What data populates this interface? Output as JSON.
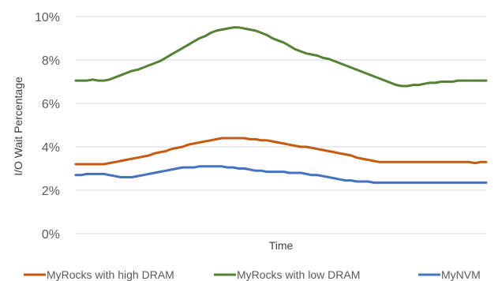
{
  "chart_data": {
    "type": "line",
    "title": "",
    "xlabel": "Time",
    "ylabel": "I/O Wait Percentage",
    "ylim": [
      0,
      10
    ],
    "y_ticks": [
      "0%",
      "2%",
      "4%",
      "6%",
      "8%",
      "10%"
    ],
    "grid": "horizontal",
    "legend_position": "bottom",
    "x_count": 74,
    "series": [
      {
        "name": "MyRocks  with high DRAM",
        "color": "#C55A11",
        "values": [
          3.2,
          3.2,
          3.2,
          3.2,
          3.2,
          3.2,
          3.25,
          3.3,
          3.35,
          3.4,
          3.45,
          3.5,
          3.55,
          3.6,
          3.7,
          3.75,
          3.8,
          3.9,
          3.95,
          4.0,
          4.1,
          4.15,
          4.2,
          4.25,
          4.3,
          4.35,
          4.4,
          4.4,
          4.4,
          4.4,
          4.4,
          4.35,
          4.35,
          4.3,
          4.3,
          4.25,
          4.2,
          4.15,
          4.1,
          4.05,
          4.0,
          4.0,
          3.95,
          3.9,
          3.85,
          3.8,
          3.75,
          3.7,
          3.65,
          3.6,
          3.5,
          3.45,
          3.4,
          3.35,
          3.3,
          3.3,
          3.3,
          3.3,
          3.3,
          3.3,
          3.3,
          3.3,
          3.3,
          3.3,
          3.3,
          3.3,
          3.3,
          3.3,
          3.3,
          3.3,
          3.3,
          3.25,
          3.3,
          3.3
        ]
      },
      {
        "name": "MyRocks  with low DRAM",
        "color": "#548235",
        "values": [
          7.05,
          7.05,
          7.05,
          7.1,
          7.05,
          7.05,
          7.1,
          7.2,
          7.3,
          7.4,
          7.5,
          7.55,
          7.65,
          7.75,
          7.85,
          7.95,
          8.1,
          8.25,
          8.4,
          8.55,
          8.7,
          8.85,
          9.0,
          9.1,
          9.25,
          9.35,
          9.4,
          9.45,
          9.5,
          9.5,
          9.45,
          9.4,
          9.35,
          9.25,
          9.15,
          9.0,
          8.9,
          8.8,
          8.65,
          8.5,
          8.4,
          8.3,
          8.25,
          8.2,
          8.1,
          8.05,
          7.95,
          7.85,
          7.75,
          7.65,
          7.55,
          7.45,
          7.35,
          7.25,
          7.15,
          7.05,
          6.95,
          6.85,
          6.8,
          6.8,
          6.85,
          6.85,
          6.9,
          6.95,
          6.95,
          7.0,
          7.0,
          7.0,
          7.05,
          7.05,
          7.05,
          7.05,
          7.05,
          7.05
        ]
      },
      {
        "name": "MyNVM",
        "color": "#4472C4",
        "values": [
          2.7,
          2.7,
          2.75,
          2.75,
          2.75,
          2.75,
          2.7,
          2.65,
          2.6,
          2.6,
          2.6,
          2.65,
          2.7,
          2.75,
          2.8,
          2.85,
          2.9,
          2.95,
          3.0,
          3.05,
          3.05,
          3.05,
          3.1,
          3.1,
          3.1,
          3.1,
          3.1,
          3.05,
          3.05,
          3.0,
          3.0,
          2.95,
          2.9,
          2.9,
          2.85,
          2.85,
          2.85,
          2.85,
          2.8,
          2.8,
          2.8,
          2.75,
          2.7,
          2.7,
          2.65,
          2.6,
          2.55,
          2.5,
          2.45,
          2.45,
          2.4,
          2.4,
          2.4,
          2.35,
          2.35,
          2.35,
          2.35,
          2.35,
          2.35,
          2.35,
          2.35,
          2.35,
          2.35,
          2.35,
          2.35,
          2.35,
          2.35,
          2.35,
          2.35,
          2.35,
          2.35,
          2.35,
          2.35,
          2.35
        ]
      }
    ]
  }
}
